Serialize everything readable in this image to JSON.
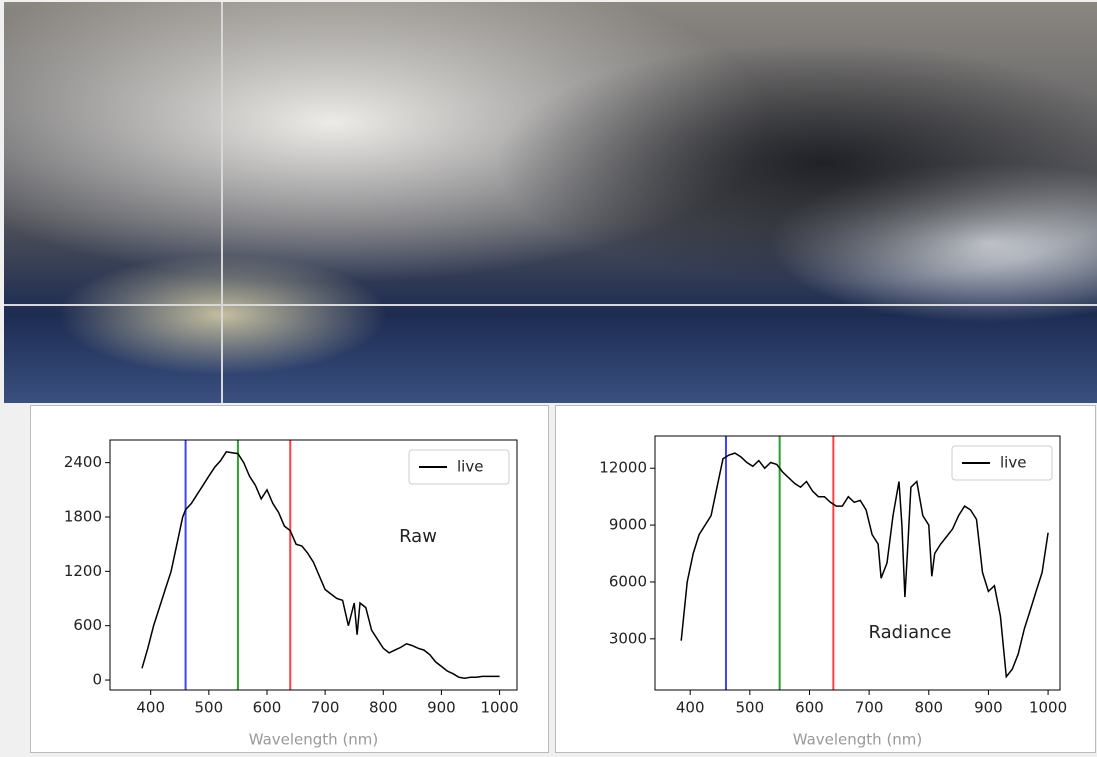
{
  "chart_data": [
    {
      "type": "line",
      "xlabel": "Wavelength (nm)",
      "annotation": "Raw",
      "x": [
        385,
        395,
        405,
        415,
        425,
        435,
        445,
        455,
        460,
        470,
        480,
        490,
        500,
        510,
        520,
        530,
        540,
        550,
        560,
        570,
        580,
        590,
        600,
        610,
        620,
        630,
        640,
        650,
        660,
        670,
        680,
        690,
        700,
        710,
        720,
        730,
        740,
        750,
        755,
        760,
        770,
        780,
        790,
        800,
        810,
        820,
        830,
        840,
        850,
        860,
        870,
        880,
        890,
        900,
        910,
        920,
        930,
        940,
        950,
        960,
        970,
        980,
        990,
        1000
      ],
      "series": [
        {
          "name": "live",
          "color": "#000000",
          "values": [
            130,
            350,
            600,
            800,
            1000,
            1200,
            1500,
            1800,
            1880,
            1950,
            2050,
            2150,
            2250,
            2350,
            2420,
            2520,
            2510,
            2500,
            2400,
            2250,
            2150,
            2000,
            2100,
            1950,
            1850,
            1700,
            1650,
            1500,
            1480,
            1400,
            1300,
            1150,
            1000,
            950,
            900,
            880,
            600,
            850,
            500,
            850,
            800,
            550,
            450,
            350,
            300,
            330,
            360,
            400,
            380,
            350,
            330,
            280,
            200,
            150,
            100,
            70,
            30,
            20,
            30,
            30,
            40,
            40,
            40,
            40
          ]
        }
      ],
      "vlines": [
        {
          "x": 460,
          "color": "#4040ff"
        },
        {
          "x": 550,
          "color": "#2ca02c"
        },
        {
          "x": 640,
          "color": "#ff4040"
        }
      ],
      "xlim": [
        330,
        1030
      ],
      "ylim": [
        -110,
        2650
      ],
      "xticks": [
        400,
        500,
        600,
        700,
        800,
        900,
        1000
      ],
      "yticks": [
        0,
        600,
        1200,
        1800,
        2400
      ],
      "legend": "upper right"
    },
    {
      "type": "line",
      "xlabel": "Wavelength (nm)",
      "annotation": "Radiance",
      "x": [
        385,
        395,
        405,
        415,
        425,
        435,
        445,
        455,
        465,
        475,
        485,
        495,
        505,
        515,
        525,
        535,
        545,
        555,
        565,
        575,
        585,
        595,
        605,
        615,
        625,
        635,
        645,
        655,
        665,
        675,
        685,
        695,
        705,
        715,
        720,
        730,
        740,
        750,
        755,
        760,
        765,
        770,
        780,
        790,
        800,
        805,
        810,
        820,
        830,
        840,
        850,
        860,
        870,
        880,
        890,
        900,
        910,
        920,
        930,
        940,
        950,
        960,
        970,
        980,
        990,
        1000
      ],
      "series": [
        {
          "name": "live",
          "color": "#000000",
          "values": [
            2900,
            6000,
            7500,
            8500,
            9000,
            9500,
            11000,
            12500,
            12700,
            12800,
            12600,
            12300,
            12100,
            12400,
            12000,
            12300,
            12200,
            11800,
            11500,
            11200,
            11000,
            11300,
            10800,
            10500,
            10500,
            10200,
            10000,
            10000,
            10500,
            10200,
            10300,
            9800,
            8500,
            8000,
            6200,
            7000,
            9500,
            11300,
            9000,
            5200,
            8000,
            11000,
            11300,
            9500,
            9000,
            6300,
            7500,
            8000,
            8400,
            8800,
            9500,
            10000,
            9800,
            9300,
            6500,
            5500,
            5800,
            4200,
            1000,
            1400,
            2200,
            3500,
            4500,
            5500,
            6500,
            8600
          ]
        }
      ],
      "vlines": [
        {
          "x": 460,
          "color": "#4040ff"
        },
        {
          "x": 550,
          "color": "#2ca02c"
        },
        {
          "x": 640,
          "color": "#ff4040"
        }
      ],
      "xlim": [
        341,
        1020
      ],
      "ylim": [
        300,
        13700
      ],
      "xticks": [
        400,
        500,
        600,
        700,
        800,
        900,
        1000
      ],
      "yticks": [
        3000,
        6000,
        9000,
        12000
      ],
      "legend": "upper right"
    }
  ]
}
